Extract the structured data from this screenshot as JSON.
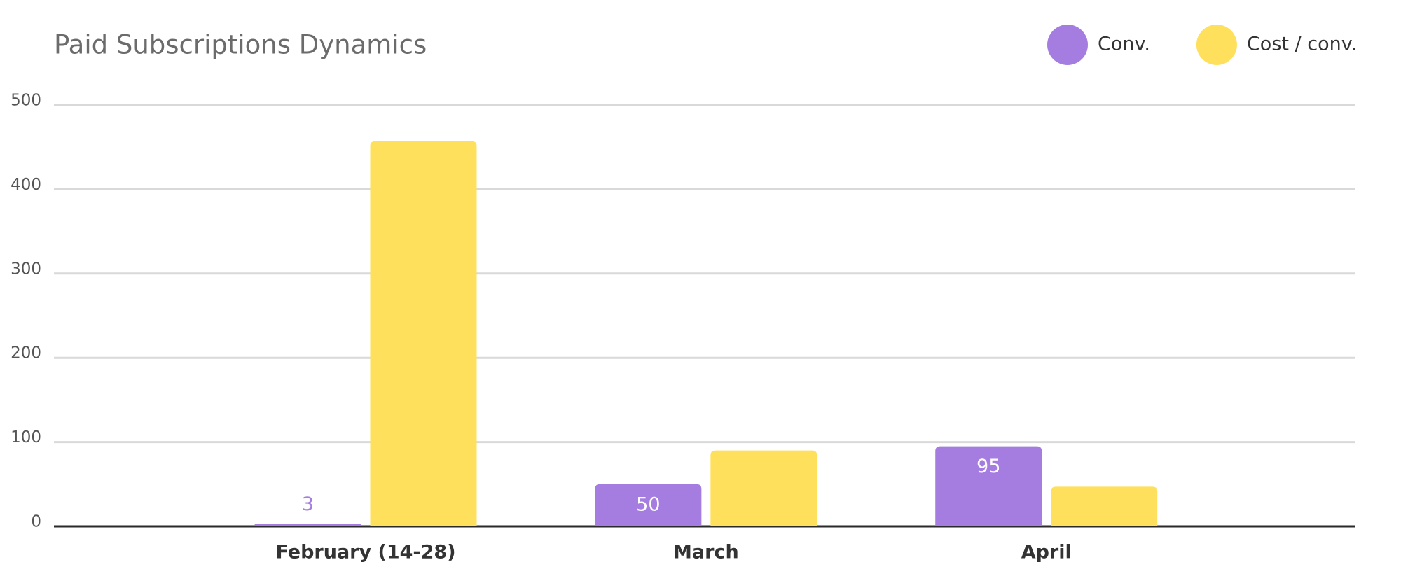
{
  "chart_data": {
    "type": "bar",
    "title": "Paid Subscriptions Dynamics",
    "categories": [
      "February (14-28)",
      "March",
      "April"
    ],
    "series": [
      {
        "name": "Conv.",
        "color": "#a57de0",
        "values": [
          3,
          50,
          95
        ],
        "show_labels": true
      },
      {
        "name": "Cost / conv.",
        "color": "#ffe05c",
        "values": [
          457,
          90,
          47
        ],
        "show_labels": false
      }
    ],
    "ylim": [
      0,
      500
    ],
    "yticks": [
      0,
      100,
      200,
      300,
      400,
      500
    ],
    "grid": true,
    "legend": "top-right"
  }
}
